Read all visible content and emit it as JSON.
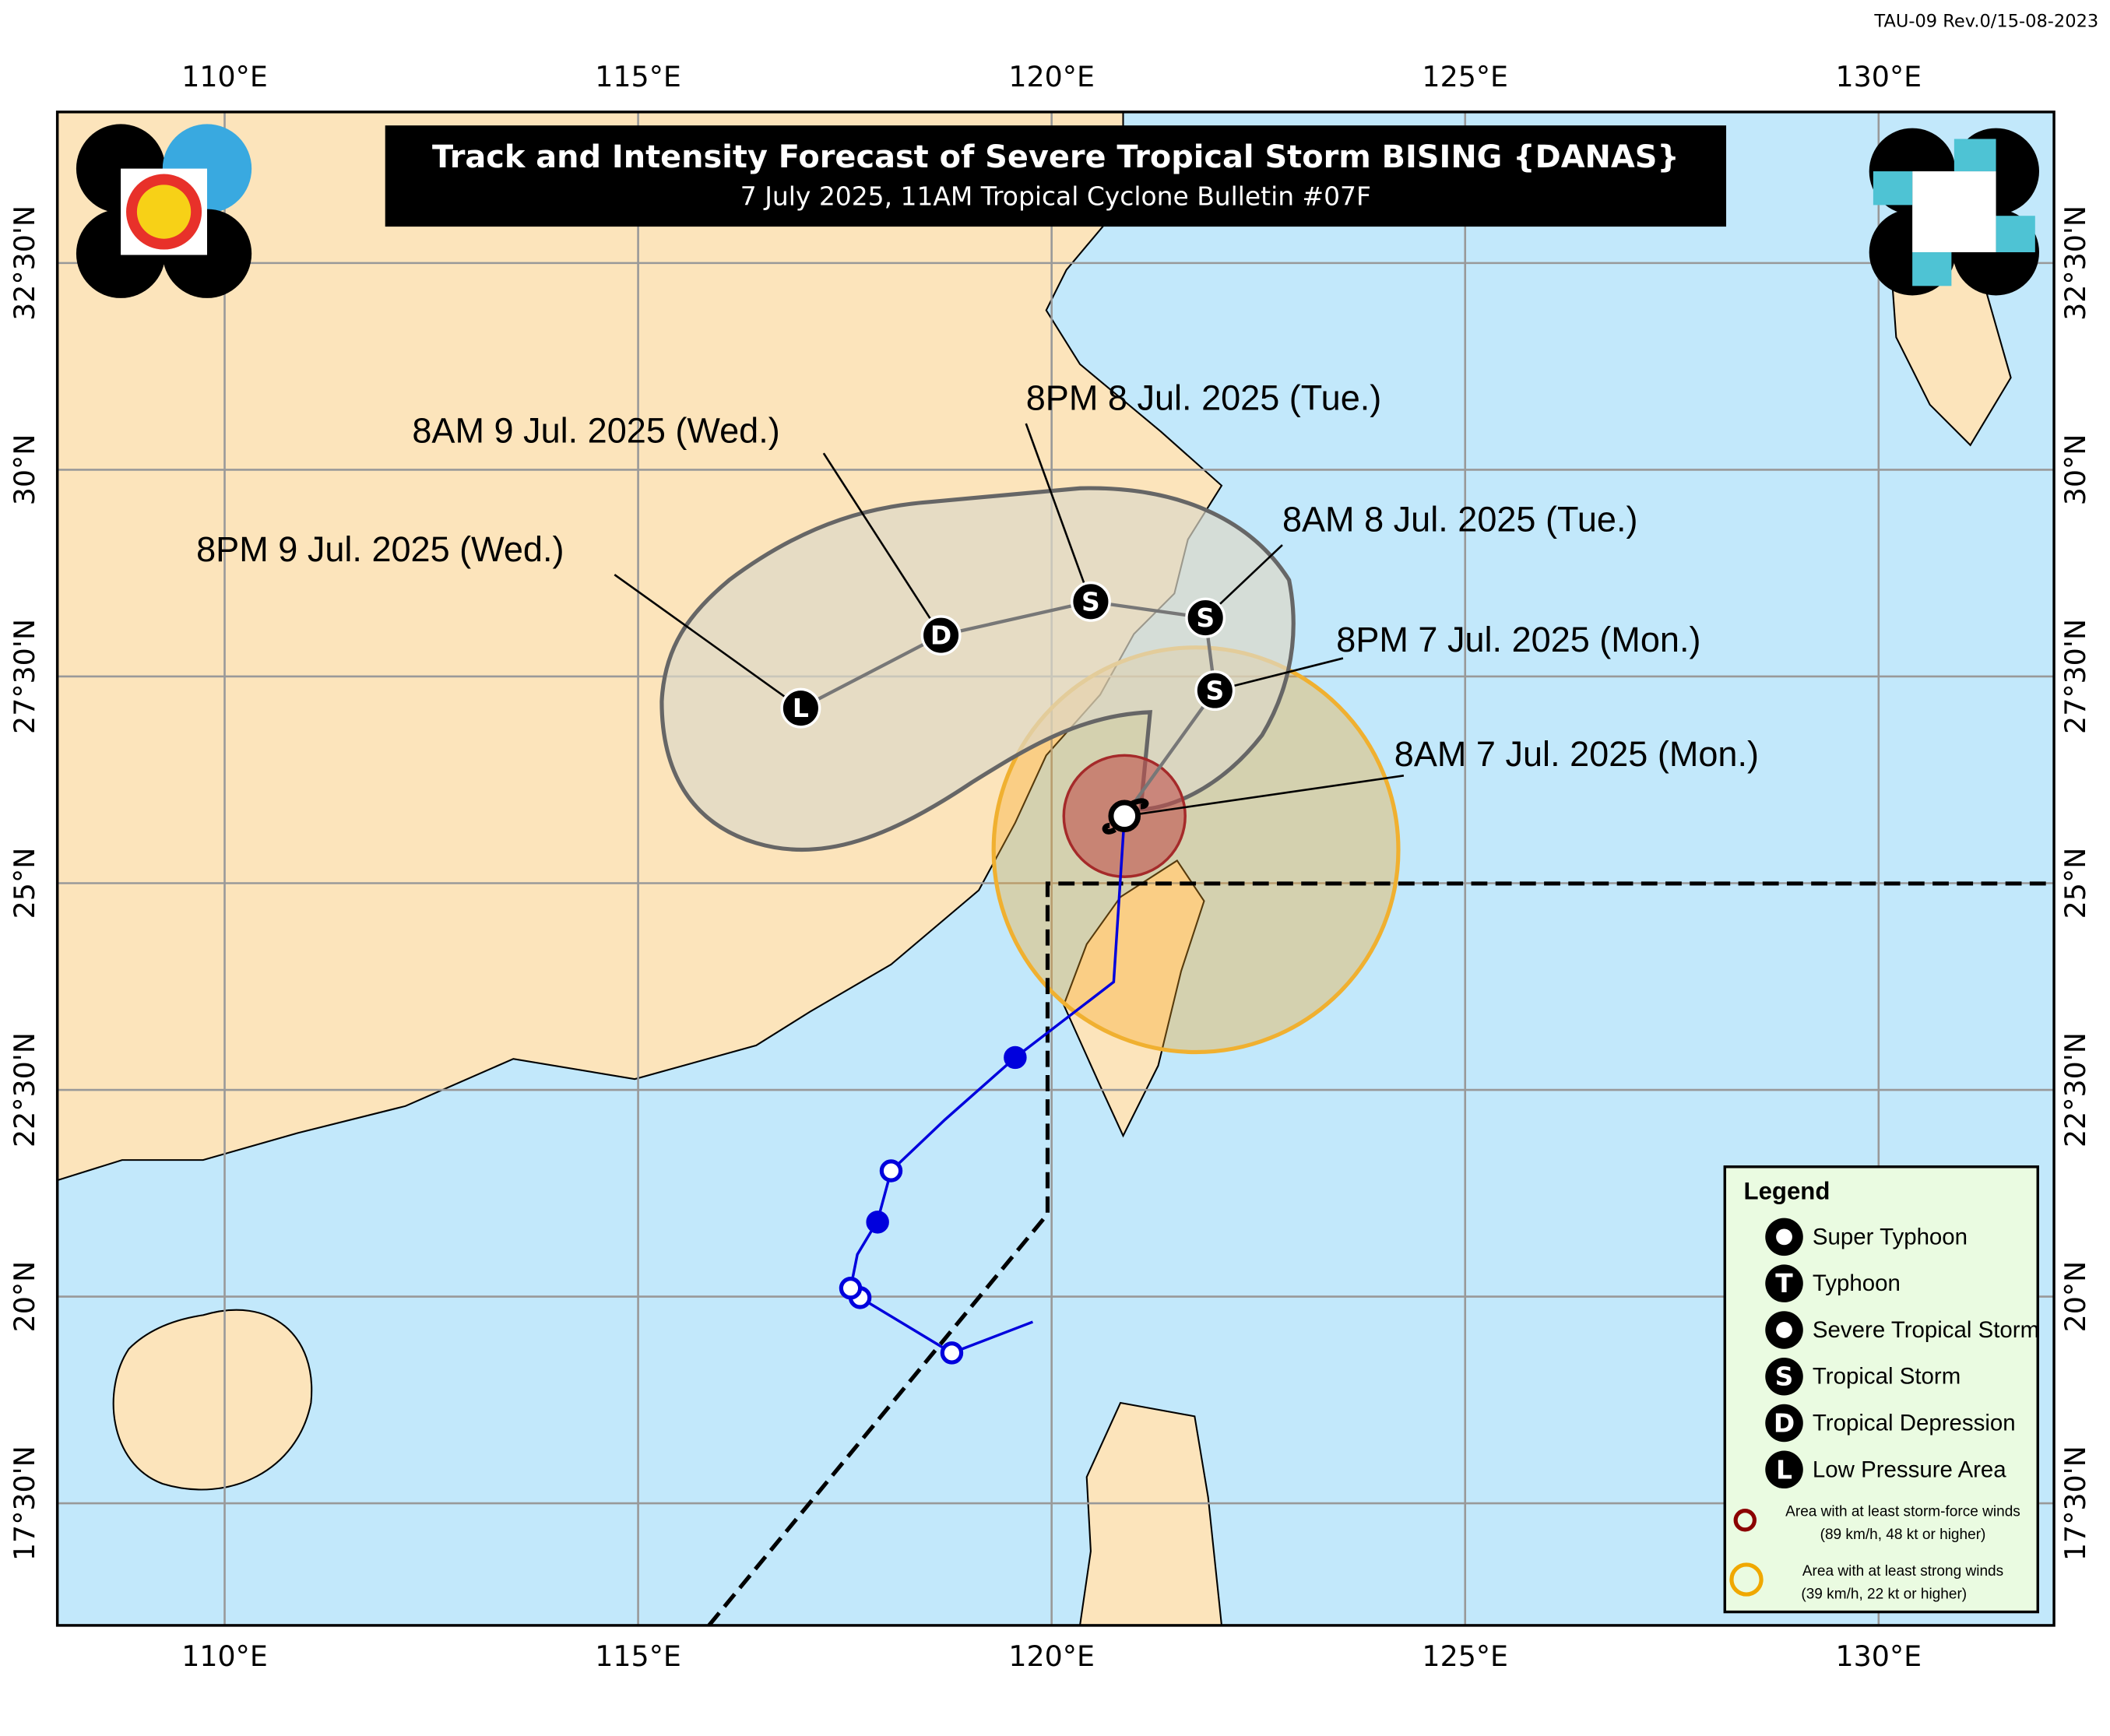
{
  "header": {
    "revision": "TAU-09 Rev.0/15-08-2023",
    "title": "Track and Intensity Forecast of Severe Tropical Storm BISING {DANAS}",
    "subtitle": "7 July 2025, 11AM Tropical Cyclone Bulletin #07F"
  },
  "map": {
    "lon_ticks": [
      {
        "value": 110,
        "label": "110°E"
      },
      {
        "value": 115,
        "label": "115°E"
      },
      {
        "value": 120,
        "label": "120°E"
      },
      {
        "value": 125,
        "label": "125°E"
      },
      {
        "value": 130,
        "label": "130°E"
      }
    ],
    "lat_ticks": [
      {
        "value": 17.5,
        "label": "17°30'N"
      },
      {
        "value": 20,
        "label": "20°N"
      },
      {
        "value": 22.5,
        "label": "22°30'N"
      },
      {
        "value": 25,
        "label": "25°N"
      },
      {
        "value": 27.5,
        "label": "27°30'N"
      },
      {
        "value": 30,
        "label": "30°N"
      },
      {
        "value": 32.5,
        "label": "32°30'N"
      }
    ]
  },
  "forecast": [
    {
      "time": "8AM 7 Jul. 2025 (Mon.)"
    },
    {
      "time": "8PM 7 Jul. 2025 (Mon.)",
      "symbol": "S"
    },
    {
      "time": "8AM 8 Jul. 2025 (Tue.)",
      "symbol": "S"
    },
    {
      "time": "8PM 8 Jul. 2025 (Tue.)",
      "symbol": "S"
    },
    {
      "time": "8AM 9 Jul. 2025 (Wed.)",
      "symbol": "D"
    },
    {
      "time": "8PM 9 Jul. 2025 (Wed.)",
      "symbol": "L"
    }
  ],
  "legend": {
    "title": "Legend",
    "items": [
      {
        "label": "Super Typhoon"
      },
      {
        "symbol": "T",
        "label": "Typhoon"
      },
      {
        "label": "Severe Tropical Storm"
      },
      {
        "symbol": "S",
        "label": "Tropical Storm"
      },
      {
        "symbol": "D",
        "label": "Tropical Depression"
      },
      {
        "symbol": "L",
        "label": "Low Pressure Area"
      }
    ],
    "areas": [
      {
        "label": "Area with at least storm-force winds",
        "detail": "(89 km/h, 48 kt or higher)"
      },
      {
        "label": "Area with at least strong winds",
        "detail": "(39 km/h, 22 kt or higher)"
      }
    ]
  }
}
